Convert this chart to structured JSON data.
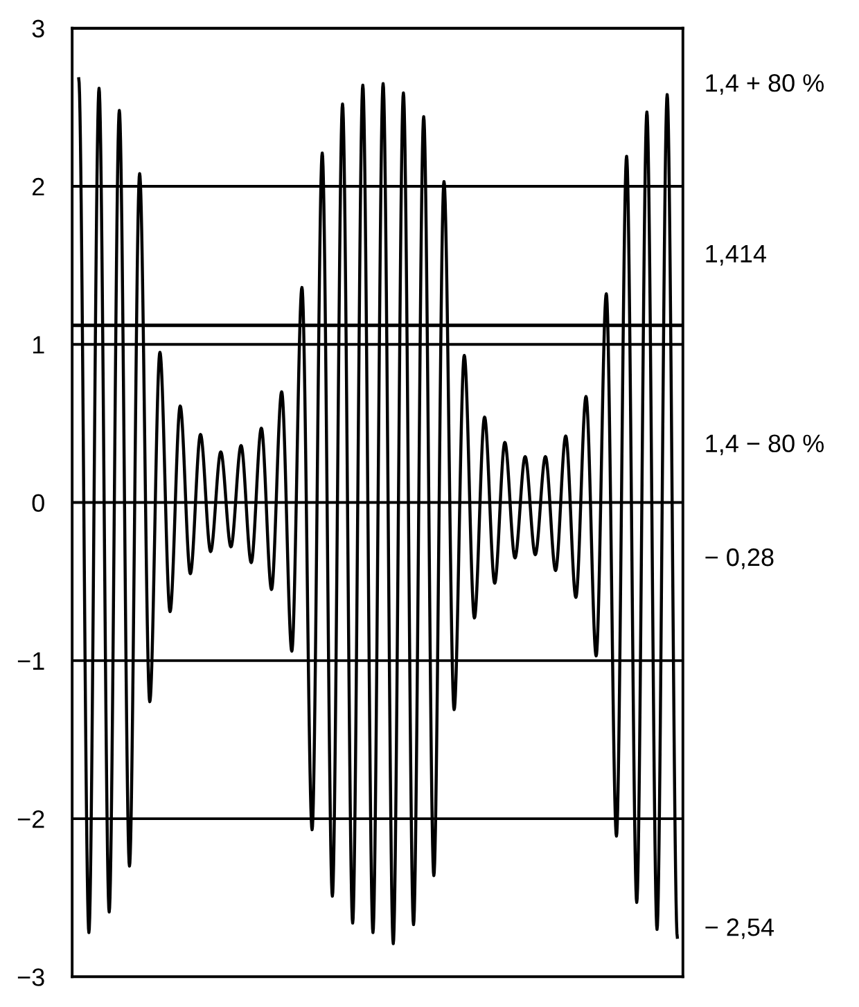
{
  "chart_data": {
    "type": "line",
    "categories": [
      null,
      null,
      null,
      null,
      null,
      null,
      null,
      null,
      null,
      null,
      null,
      null,
      null,
      null,
      null,
      null,
      null,
      null,
      null,
      null,
      null,
      null,
      null,
      null,
      null,
      null,
      null,
      null,
      null,
      null,
      null,
      null,
      null,
      null,
      null,
      null,
      null,
      null,
      null,
      null,
      null,
      null,
      null,
      null,
      null,
      null,
      null,
      null,
      null,
      null,
      null,
      null,
      null,
      null,
      null,
      null,
      null,
      null,
      null,
      null
    ],
    "series": [
      {
        "color": "#000000",
        "values": [
          2.68,
          -2.72,
          2.62,
          -2.59,
          2.48,
          -2.3,
          2.08,
          -1.26,
          0.95,
          -0.69,
          0.61,
          -0.45,
          0.43,
          -0.31,
          0.32,
          -0.28,
          0.36,
          -0.38,
          0.47,
          -0.55,
          0.7,
          -0.94,
          1.36,
          -2.07,
          2.21,
          -2.49,
          2.52,
          -2.66,
          2.64,
          -2.72,
          2.65,
          -2.79,
          2.59,
          -2.67,
          2.44,
          -2.36,
          2.03,
          -1.31,
          0.93,
          -0.73,
          0.54,
          -0.51,
          0.38,
          -0.35,
          0.29,
          -0.33,
          0.29,
          -0.43,
          0.42,
          -0.6,
          0.67,
          -0.97,
          1.32,
          -2.11,
          2.19,
          -2.53,
          2.47,
          -2.7,
          2.58,
          -2.75
        ]
      }
    ],
    "ylim": [
      -3,
      3
    ],
    "yticks": [
      {
        "value": -3,
        "label": "−3"
      },
      {
        "value": -2,
        "label": "−2"
      },
      {
        "value": -1,
        "label": "−1"
      },
      0,
      1,
      2,
      3
    ],
    "grid": "y",
    "ref_lines": [
      {
        "axis": "y",
        "value": 1.12,
        "color": "#000000"
      }
    ],
    "annotations": [
      "1,4 + 80 %",
      "1,414",
      "1,4 − 80 %",
      "− 0,28",
      "− 2,54"
    ],
    "marker": "none",
    "line_style": "solid",
    "legend": false
  }
}
